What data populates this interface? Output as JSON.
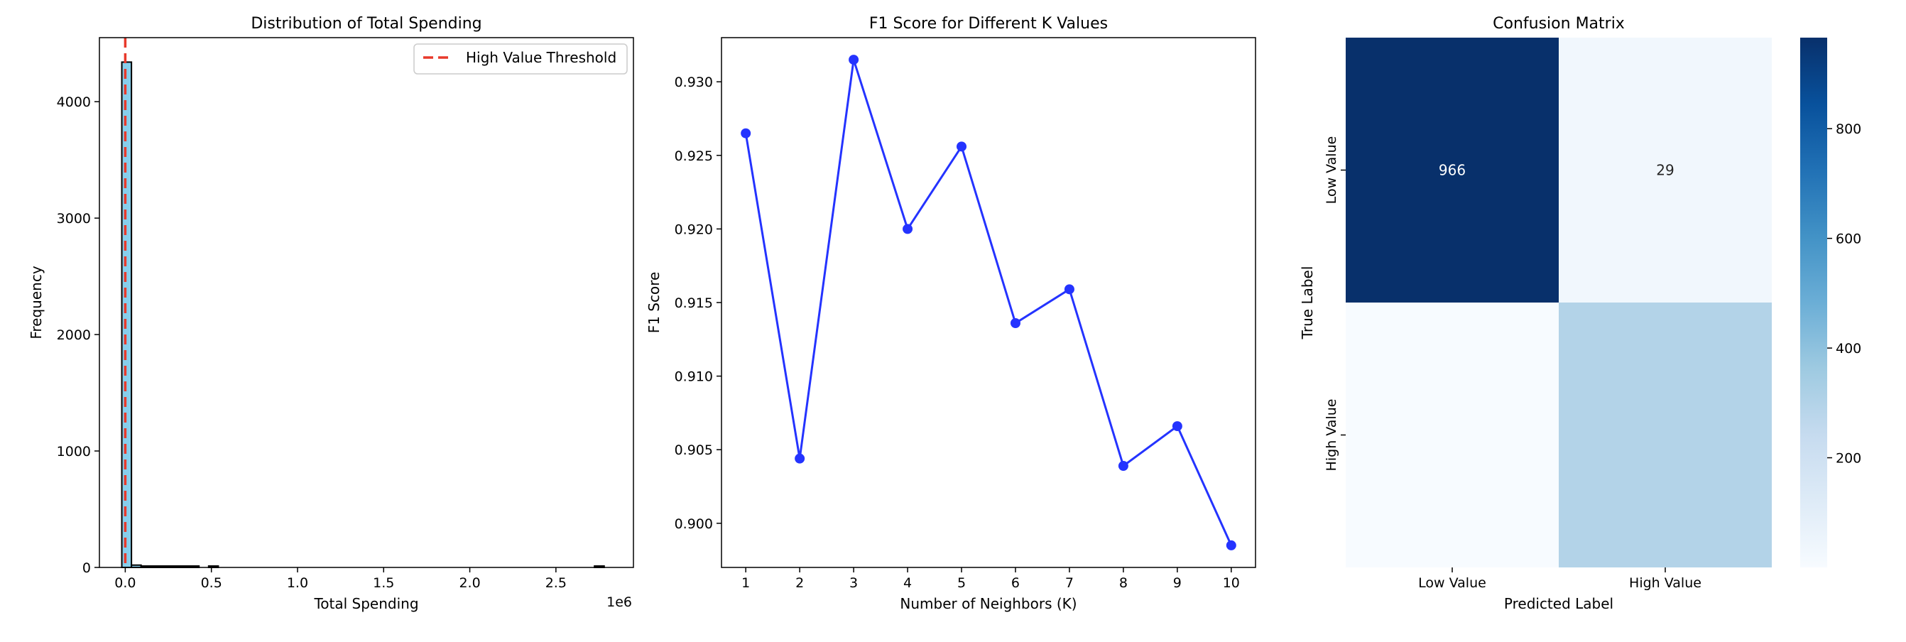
{
  "colors": {
    "hist_fill": "#87ceeb",
    "threshold_line": "#e8392b",
    "f1_line": "#2433ff",
    "heatmap_low": "#f7fbff",
    "heatmap_mid": "#6baed6",
    "heatmap_high": "#08306b"
  },
  "chart_data": [
    {
      "type": "bar",
      "title": "Distribution of Total Spending",
      "xlabel": "Total Spending",
      "ylabel": "Frequency",
      "x_offset_label": "1e6",
      "xlim": [
        -150000,
        2950000
      ],
      "ylim": [
        0,
        4550
      ],
      "x_ticks": [
        0,
        500000,
        1000000,
        1500000,
        2000000,
        2500000
      ],
      "x_tick_labels": [
        "0.0",
        "0.5",
        "1.0",
        "1.5",
        "2.0",
        "2.5"
      ],
      "y_ticks": [
        0,
        1000,
        2000,
        3000,
        4000
      ],
      "y_tick_labels": [
        "0",
        "1000",
        "2000",
        "3000",
        "4000"
      ],
      "bin_start": -20000,
      "bin_width": 56000,
      "counts": [
        4340,
        20,
        12,
        6,
        3,
        2,
        1,
        1,
        0,
        1,
        0,
        0,
        0,
        0,
        0,
        0,
        0,
        0,
        0,
        0,
        0,
        0,
        0,
        0,
        0,
        0,
        0,
        0,
        0,
        0,
        0,
        0,
        0,
        0,
        0,
        0,
        0,
        0,
        0,
        0,
        0,
        0,
        0,
        0,
        0,
        0,
        0,
        0,
        0,
        1
      ],
      "threshold": 0,
      "legend": "High Value Threshold",
      "legend_position": "top-right",
      "grid": false
    },
    {
      "type": "line",
      "title": "F1 Score for Different K Values",
      "xlabel": "Number of Neighbors (K)",
      "ylabel": "F1 Score",
      "x": [
        1,
        2,
        3,
        4,
        5,
        6,
        7,
        8,
        9,
        10
      ],
      "y": [
        0.9265,
        0.9044,
        0.9315,
        0.92,
        0.9256,
        0.9136,
        0.9159,
        0.9039,
        0.9066,
        0.8985
      ],
      "xlim": [
        0.55,
        10.45
      ],
      "ylim": [
        0.897,
        0.933
      ],
      "x_ticks": [
        1,
        2,
        3,
        4,
        5,
        6,
        7,
        8,
        9,
        10
      ],
      "x_tick_labels": [
        "1",
        "2",
        "3",
        "4",
        "5",
        "6",
        "7",
        "8",
        "9",
        "10"
      ],
      "y_ticks": [
        0.9,
        0.905,
        0.91,
        0.915,
        0.92,
        0.925,
        0.93
      ],
      "y_tick_labels": [
        "0.900",
        "0.905",
        "0.910",
        "0.915",
        "0.920",
        "0.925",
        "0.930"
      ],
      "grid": false
    },
    {
      "type": "heatmap",
      "title": "Confusion Matrix",
      "xlabel": "Predicted Label",
      "ylabel": "True Label",
      "x_categories": [
        "Low Value",
        "High Value"
      ],
      "y_categories": [
        "Low Value",
        "High Value"
      ],
      "values": [
        [
          966,
          29
        ],
        [
          0,
          300
        ]
      ],
      "annotations": [
        [
          "966",
          "29"
        ],
        [
          "",
          ""
        ]
      ],
      "vmin": 0,
      "vmax": 966,
      "colorbar_ticks": [
        200,
        400,
        600,
        800
      ],
      "colorbar_tick_labels": [
        "200",
        "400",
        "600",
        "800"
      ]
    }
  ]
}
